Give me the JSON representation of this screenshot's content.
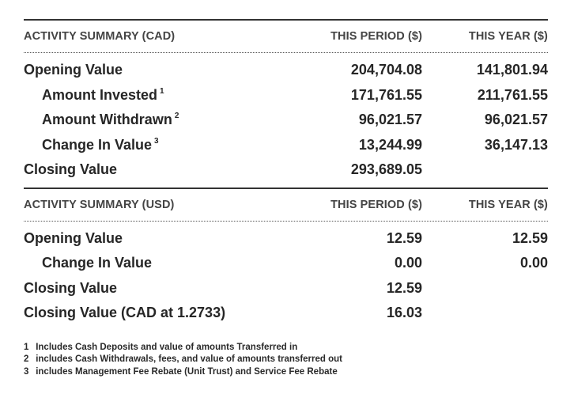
{
  "cad": {
    "header": {
      "label": "ACTIVITY SUMMARY (CAD)",
      "period": "THIS PERIOD ($)",
      "year": "THIS YEAR ($)"
    },
    "rows": [
      {
        "label": "Opening Value",
        "sup": "",
        "period": "204,704.08",
        "year": "141,801.94"
      },
      {
        "label": "Amount Invested",
        "sup": "1",
        "period": "171,761.55",
        "year": "211,761.55"
      },
      {
        "label": "Amount Withdrawn",
        "sup": "2",
        "period": "96,021.57",
        "year": "96,021.57"
      },
      {
        "label": "Change In Value",
        "sup": "3",
        "period": "13,244.99",
        "year": "36,147.13"
      },
      {
        "label": "Closing Value",
        "sup": "",
        "period": "293,689.05",
        "year": ""
      }
    ]
  },
  "usd": {
    "header": {
      "label": "ACTIVITY SUMMARY (USD)",
      "period": "THIS PERIOD ($)",
      "year": "THIS YEAR ($)"
    },
    "rows": [
      {
        "label": "Opening Value",
        "period": "12.59",
        "year": "12.59"
      },
      {
        "label": "Change In Value",
        "period": "0.00",
        "year": "0.00"
      },
      {
        "label": "Closing Value",
        "period": "12.59",
        "year": ""
      },
      {
        "label": "Closing Value (CAD at 1.2733)",
        "period": "16.03",
        "year": ""
      }
    ]
  },
  "footnotes": [
    {
      "num": "1",
      "text": "Includes Cash Deposits and value of amounts Transferred in"
    },
    {
      "num": "2",
      "text": "includes Cash Withdrawals, fees, and value of amounts transferred out"
    },
    {
      "num": "3",
      "text": "includes Management Fee Rebate (Unit Trust) and Service Fee Rebate"
    }
  ]
}
